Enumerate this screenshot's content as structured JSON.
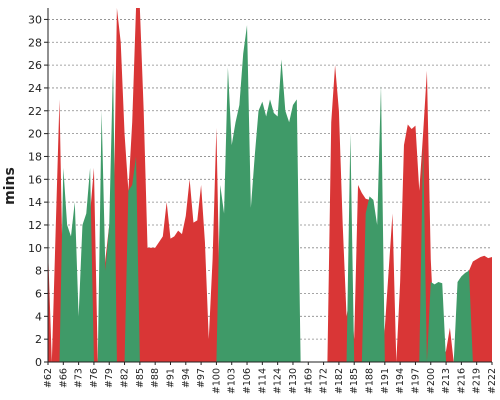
{
  "chart_data": {
    "type": "area",
    "title": "",
    "xlabel": "",
    "ylabel": "mins",
    "ylim": [
      0,
      31
    ],
    "yticks": [
      0,
      2,
      4,
      6,
      8,
      10,
      12,
      14,
      16,
      18,
      20,
      22,
      24,
      26,
      28,
      30
    ],
    "grid": true,
    "categories": [
      "#62",
      "#66",
      "#73",
      "#76",
      "#79",
      "#82",
      "#85",
      "#88",
      "#91",
      "#94",
      "#97",
      "#100",
      "#103",
      "#106",
      "#114",
      "#124",
      "#130",
      "#169",
      "#172",
      "#182",
      "#185",
      "#188",
      "#191",
      "#194",
      "#197",
      "#200",
      "#213",
      "#216",
      "#219",
      "#222"
    ],
    "x_extent": [
      0,
      116
    ],
    "x_ticks": [
      0,
      4,
      8,
      12,
      16,
      20,
      24,
      28,
      32,
      36,
      40,
      44,
      48,
      52,
      56,
      60,
      64,
      68,
      72,
      76,
      80,
      84,
      88,
      92,
      96,
      100,
      104,
      108,
      112,
      116
    ],
    "series": [
      {
        "color": "#d93636",
        "values": [
          [
            0,
            10
          ],
          [
            1,
            0
          ],
          [
            3,
            23
          ],
          [
            4,
            5
          ],
          [
            5,
            11
          ],
          [
            6,
            5
          ],
          [
            7,
            0
          ],
          [
            8,
            2
          ],
          [
            9,
            3
          ],
          [
            11,
            13
          ],
          [
            12,
            17
          ],
          [
            13,
            0
          ],
          [
            14,
            6
          ],
          [
            16,
            12
          ],
          [
            17,
            9
          ],
          [
            18,
            31
          ],
          [
            19,
            28
          ],
          [
            20,
            20
          ],
          [
            21,
            15
          ],
          [
            22,
            21
          ],
          [
            23,
            31
          ],
          [
            24,
            31
          ],
          [
            25,
            22
          ],
          [
            26,
            10
          ],
          [
            27,
            10
          ],
          [
            28,
            10
          ],
          [
            29,
            10.5
          ],
          [
            30,
            11
          ],
          [
            31,
            14
          ],
          [
            32,
            10.8
          ],
          [
            33,
            11
          ],
          [
            34,
            11.5
          ],
          [
            35,
            11.2
          ],
          [
            36,
            12.8
          ],
          [
            37,
            16
          ],
          [
            38,
            12.2
          ],
          [
            39,
            12.4
          ],
          [
            40,
            15.5
          ],
          [
            41,
            10.5
          ],
          [
            42,
            2
          ],
          [
            43,
            9
          ],
          [
            44,
            20.5
          ],
          [
            45,
            3
          ],
          [
            46,
            0
          ],
          [
            47,
            0
          ],
          [
            48,
            0
          ],
          [
            49,
            0
          ],
          [
            50,
            0
          ],
          [
            51,
            0
          ],
          [
            52,
            0
          ],
          [
            53,
            0
          ],
          [
            54,
            0
          ],
          [
            55,
            0
          ],
          [
            56,
            0
          ],
          [
            57,
            0
          ],
          [
            58,
            0
          ],
          [
            59,
            0
          ],
          [
            60,
            0
          ],
          [
            61,
            0
          ],
          [
            62,
            0
          ],
          [
            63,
            0
          ],
          [
            64,
            0
          ],
          [
            65,
            0
          ],
          [
            66,
            0
          ],
          [
            67,
            0
          ],
          [
            68,
            0
          ],
          [
            69,
            0
          ],
          [
            70,
            0
          ],
          [
            71,
            0
          ],
          [
            72,
            0
          ],
          [
            73,
            0
          ],
          [
            74,
            21
          ],
          [
            75,
            26
          ],
          [
            76,
            22
          ],
          [
            77,
            12
          ],
          [
            78,
            4
          ],
          [
            79,
            6
          ],
          [
            80,
            2
          ],
          [
            81,
            15.5
          ],
          [
            82,
            14.8
          ],
          [
            83,
            14.3
          ],
          [
            84,
            14.2
          ],
          [
            85,
            14.1
          ],
          [
            86,
            0
          ],
          [
            87,
            0
          ],
          [
            88,
            3
          ],
          [
            89,
            8
          ],
          [
            90,
            13
          ],
          [
            91,
            0
          ],
          [
            92,
            7
          ],
          [
            93,
            19
          ],
          [
            94,
            20.8
          ],
          [
            95,
            20.4
          ],
          [
            96,
            20.7
          ],
          [
            97,
            15
          ],
          [
            98,
            20
          ],
          [
            99,
            25.5
          ],
          [
            100,
            9
          ],
          [
            101,
            2
          ],
          [
            102,
            1
          ],
          [
            103,
            0
          ],
          [
            104,
            1
          ],
          [
            105,
            3
          ],
          [
            106,
            0
          ],
          [
            107,
            0
          ],
          [
            108,
            6
          ],
          [
            109,
            7.5
          ],
          [
            110,
            8
          ],
          [
            111,
            8.8
          ],
          [
            112,
            9
          ],
          [
            113,
            9.2
          ],
          [
            114,
            9.3
          ],
          [
            115,
            9.1
          ],
          [
            116,
            9.2
          ]
        ]
      },
      {
        "color": "#3f9a68",
        "values": [
          [
            0,
            0
          ],
          [
            1,
            0
          ],
          [
            2,
            0
          ],
          [
            3,
            0
          ],
          [
            4,
            17
          ],
          [
            5,
            12
          ],
          [
            6,
            11
          ],
          [
            7,
            14
          ],
          [
            8,
            4
          ],
          [
            9,
            12
          ],
          [
            10,
            13
          ],
          [
            11,
            17
          ],
          [
            12,
            0
          ],
          [
            13,
            0
          ],
          [
            14,
            22
          ],
          [
            15,
            8
          ],
          [
            16,
            12
          ],
          [
            17,
            26
          ],
          [
            18,
            0
          ],
          [
            19,
            0
          ],
          [
            20,
            0
          ],
          [
            21,
            15
          ],
          [
            22,
            15.5
          ],
          [
            23,
            18
          ],
          [
            24,
            0
          ],
          [
            25,
            0
          ],
          [
            26,
            0
          ],
          [
            27,
            0
          ],
          [
            28,
            0
          ],
          [
            29,
            0
          ],
          [
            30,
            0
          ],
          [
            31,
            0
          ],
          [
            32,
            0
          ],
          [
            33,
            0
          ],
          [
            34,
            0
          ],
          [
            35,
            0
          ],
          [
            36,
            0
          ],
          [
            37,
            0
          ],
          [
            38,
            0
          ],
          [
            39,
            0
          ],
          [
            40,
            0
          ],
          [
            41,
            0
          ],
          [
            42,
            0
          ],
          [
            43,
            0
          ],
          [
            44,
            0
          ],
          [
            45,
            15.5
          ],
          [
            46,
            13
          ],
          [
            47,
            25.8
          ],
          [
            48,
            19
          ],
          [
            49,
            21
          ],
          [
            50,
            22.5
          ],
          [
            51,
            27
          ],
          [
            52,
            29.5
          ],
          [
            53,
            13.5
          ],
          [
            54,
            18
          ],
          [
            55,
            22
          ],
          [
            56,
            22.8
          ],
          [
            57,
            21.5
          ],
          [
            58,
            23
          ],
          [
            59,
            21.8
          ],
          [
            60,
            21.5
          ],
          [
            61,
            26.5
          ],
          [
            62,
            22
          ],
          [
            63,
            21
          ],
          [
            64,
            22.5
          ],
          [
            65,
            23
          ],
          [
            66,
            0
          ],
          [
            67,
            0
          ],
          [
            68,
            0
          ],
          [
            69,
            0
          ],
          [
            70,
            0
          ],
          [
            71,
            0
          ],
          [
            72,
            0
          ],
          [
            73,
            0
          ],
          [
            74,
            0
          ],
          [
            75,
            0
          ],
          [
            76,
            0
          ],
          [
            77,
            0
          ],
          [
            78,
            0
          ],
          [
            79,
            20
          ],
          [
            80,
            0
          ],
          [
            81,
            0
          ],
          [
            82,
            0
          ],
          [
            83,
            13
          ],
          [
            84,
            14.5
          ],
          [
            85,
            14.2
          ],
          [
            86,
            12
          ],
          [
            87,
            24.2
          ],
          [
            88,
            0
          ],
          [
            89,
            0
          ],
          [
            90,
            0
          ],
          [
            91,
            0
          ],
          [
            92,
            0
          ],
          [
            93,
            0
          ],
          [
            94,
            0
          ],
          [
            95,
            0
          ],
          [
            96,
            0
          ],
          [
            97,
            0
          ],
          [
            98,
            19
          ],
          [
            99,
            0
          ],
          [
            100,
            7
          ],
          [
            101,
            6.8
          ],
          [
            102,
            7
          ],
          [
            103,
            6.9
          ],
          [
            104,
            0
          ],
          [
            105,
            0
          ],
          [
            106,
            0
          ],
          [
            107,
            7
          ],
          [
            108,
            7.5
          ],
          [
            109,
            7.8
          ],
          [
            110,
            8
          ],
          [
            111,
            0
          ],
          [
            112,
            0
          ],
          [
            113,
            0
          ],
          [
            114,
            0
          ],
          [
            115,
            0
          ],
          [
            116,
            0
          ]
        ]
      }
    ]
  }
}
